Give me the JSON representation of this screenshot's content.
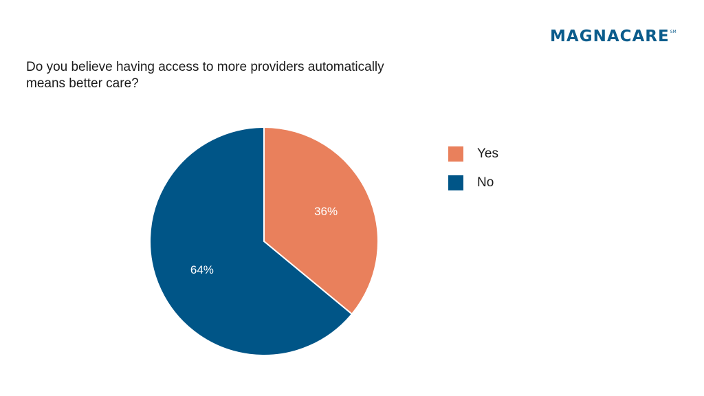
{
  "brand": {
    "name": "MAGNACARE",
    "mark": "SM"
  },
  "chart_data": {
    "type": "pie",
    "title": "Do you believe having access to more providers automatically means better care?",
    "categories": [
      "Yes",
      "No"
    ],
    "values": [
      36,
      64
    ],
    "labels": [
      "36%",
      "64%"
    ],
    "colors": [
      "#e9805c",
      "#005587"
    ],
    "legend_position": "right"
  }
}
